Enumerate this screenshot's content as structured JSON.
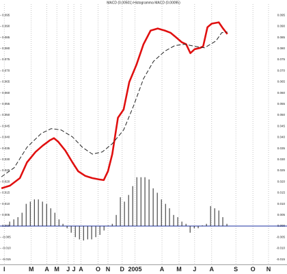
{
  "chart_data": {
    "type": "macd",
    "title": "MACD (0.00501) Histogramma MACD (0.00095)",
    "xlim": [
      -0.3,
      19.9
    ],
    "xticks": [
      {
        "value": 0,
        "label": "I"
      },
      {
        "value": 1.9,
        "label": "M"
      },
      {
        "value": 3,
        "label": "A"
      },
      {
        "value": 3.7,
        "label": "M"
      },
      {
        "value": 4.5,
        "label": "J"
      },
      {
        "value": 4.9,
        "label": "J"
      },
      {
        "value": 5.4,
        "label": "A"
      },
      {
        "value": 6.6,
        "label": "O"
      },
      {
        "value": 7.3,
        "label": "N"
      },
      {
        "value": 8.3,
        "label": "D"
      },
      {
        "value": 9.2,
        "label": "2005"
      },
      {
        "value": 11.1,
        "label": "A"
      },
      {
        "value": 12.3,
        "label": "M"
      },
      {
        "value": 13.4,
        "label": "J"
      },
      {
        "value": 14.6,
        "label": "A"
      },
      {
        "value": 16.3,
        "label": "S"
      },
      {
        "value": 17.5,
        "label": "O"
      },
      {
        "value": 18.6,
        "label": "N"
      }
    ],
    "ylim": [
      -0.0175,
      0.1
    ],
    "yticks": [
      {
        "value": 0.095,
        "label": "0.095"
      },
      {
        "value": 0.09,
        "label": "0.090"
      },
      {
        "value": 0.085,
        "label": "0.085"
      },
      {
        "value": 0.08,
        "label": "0.080"
      },
      {
        "value": 0.075,
        "label": "0.075"
      },
      {
        "value": 0.07,
        "label": "0.070"
      },
      {
        "value": 0.065,
        "label": "0.065"
      },
      {
        "value": 0.06,
        "label": "0.060"
      },
      {
        "value": 0.055,
        "label": "0.055"
      },
      {
        "value": 0.05,
        "label": "0.050"
      },
      {
        "value": 0.045,
        "label": "0.045"
      },
      {
        "value": 0.04,
        "label": "0.040"
      },
      {
        "value": 0.035,
        "label": "0.035"
      },
      {
        "value": 0.03,
        "label": "0.030"
      },
      {
        "value": 0.025,
        "label": "0.025"
      },
      {
        "value": 0.02,
        "label": "0.020"
      },
      {
        "value": 0.015,
        "label": "0.015"
      },
      {
        "value": 0.01,
        "label": "0.010"
      },
      {
        "value": 0.005,
        "label": "0.005"
      },
      {
        "value": 0,
        "label": "0.000"
      },
      {
        "value": -0.005,
        "label": "-0.005"
      },
      {
        "value": -0.01,
        "label": "-0.010"
      },
      {
        "value": -0.015,
        "label": "-0.015"
      }
    ],
    "grid": true,
    "zero_line_color": "#1a2fa0",
    "series": [
      {
        "kind": "line",
        "color": "#e01010",
        "dashed": false,
        "x": [
          -0.2,
          0.4,
          1.1,
          1.6,
          2.2,
          2.7,
          3.2,
          3.5,
          3.8,
          4.3,
          4.8,
          5.2,
          5.7,
          6.2,
          6.7,
          7.0,
          7.3,
          7.6,
          8.0,
          8.4,
          8.8,
          9.3,
          9.8,
          10.3,
          10.8,
          11.3,
          11.7,
          12.1,
          12.5,
          12.8,
          13.1,
          13.4,
          13.8,
          14.0,
          14.3,
          14.6,
          15.1,
          15.4,
          15.7
        ],
        "values": [
          0.017,
          0.0182,
          0.0216,
          0.0287,
          0.0334,
          0.0362,
          0.0386,
          0.0396,
          0.038,
          0.034,
          0.0287,
          0.0247,
          0.0226,
          0.0216,
          0.021,
          0.0207,
          0.0247,
          0.0324,
          0.0488,
          0.0525,
          0.0649,
          0.0726,
          0.0819,
          0.0881,
          0.089,
          0.0881,
          0.0871,
          0.085,
          0.0828,
          0.0819,
          0.0779,
          0.0797,
          0.0803,
          0.081,
          0.0896,
          0.0912,
          0.0918,
          0.089,
          0.0865
        ]
      },
      {
        "kind": "line",
        "color": "#222222",
        "dashed": true,
        "x": [
          -0.2,
          0.7,
          1.6,
          2.6,
          3.3,
          4.0,
          4.8,
          5.5,
          6.2,
          6.9,
          7.6,
          8.4,
          9.1,
          9.8,
          10.5,
          11.3,
          12.0,
          12.7,
          13.4,
          14.1,
          14.9,
          15.3,
          15.7
        ],
        "values": [
          0.0222,
          0.0263,
          0.0355,
          0.0417,
          0.0439,
          0.0433,
          0.0402,
          0.0355,
          0.0324,
          0.0334,
          0.0371,
          0.0433,
          0.0541,
          0.0664,
          0.0742,
          0.0788,
          0.0813,
          0.0819,
          0.081,
          0.0803,
          0.0834,
          0.0871,
          0.0874
        ]
      },
      {
        "kind": "histogram",
        "color": "#222222",
        "dashed": false,
        "x": [
          0.38,
          0.67,
          0.96,
          1.25,
          1.54,
          1.83,
          2.12,
          2.4,
          2.69,
          2.98,
          3.27,
          3.56,
          3.85,
          4.13,
          4.42,
          4.71,
          5.0,
          5.29,
          5.58,
          5.87,
          6.15,
          6.44,
          6.73,
          7.02,
          7.31,
          7.6,
          7.88,
          8.17,
          8.46,
          8.75,
          9.04,
          9.33,
          9.62,
          9.9,
          10.19,
          10.48,
          10.77,
          11.06,
          11.35,
          11.63,
          11.92,
          12.21,
          12.5,
          12.79,
          13.08,
          13.37,
          13.65,
          13.94,
          14.23,
          14.52,
          14.81,
          15.1,
          15.38,
          15.67
        ],
        "values": [
          0.002,
          0.003,
          0.004,
          0.006,
          0.01,
          0.011,
          0.012,
          0.012,
          0.011,
          0.01,
          0.008,
          0.006,
          0.003,
          0.001,
          -0.001,
          -0.003,
          -0.005,
          -0.006,
          -0.0065,
          -0.006,
          -0.006,
          -0.005,
          -0.004,
          -0.002,
          0.0003,
          0.001,
          0.005,
          0.013,
          0.011,
          0.014,
          0.018,
          0.022,
          0.022,
          0.022,
          0.021,
          0.017,
          0.015,
          0.012,
          0.01,
          0.008,
          0.005,
          0.004,
          0.002,
          0.001,
          -0.003,
          -0.001,
          -0.001,
          0.0003,
          0.001,
          0.009,
          0.008,
          0.007,
          0.004,
          0.001
        ]
      }
    ]
  }
}
